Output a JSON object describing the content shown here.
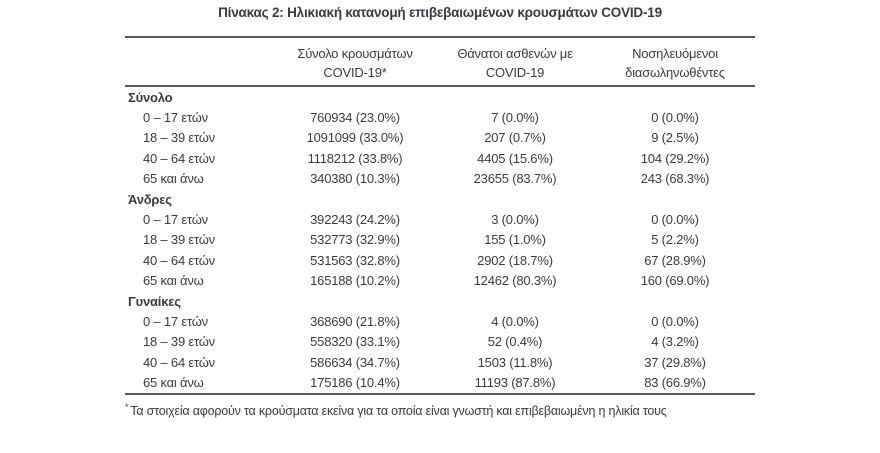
{
  "page": {
    "title": "Πίνακας 2: Ηλικιακή κατανομή επιβεβαιωμένων κρουσμάτων COVID-19",
    "footnote_marker": "*",
    "footnote": "Τα στοιχεία αφορούν τα κρούσματα εκείνα για τα οποία είναι γνωστή και επιβεβαιωμένη η ηλικία τους"
  },
  "colors": {
    "text": "#3a3b3f",
    "rule": "#58595b",
    "background": "#ffffff"
  },
  "table": {
    "columns": [
      {
        "line1": "Σύνολο κρουσμάτων",
        "line2": "COVID-19*"
      },
      {
        "line1": "Θάνατοι ασθενών με",
        "line2": "COVID-19"
      },
      {
        "line1": "Νοσηλευόμενοι",
        "line2": "διασωληνωθέντες"
      }
    ],
    "sections": [
      {
        "label": "Σύνολο",
        "rows": [
          {
            "label": "0 – 17 ετών",
            "values": [
              "760934 (23.0%)",
              "7 (0.0%)",
              "0 (0.0%)"
            ]
          },
          {
            "label": "18 – 39 ετών",
            "values": [
              "1091099 (33.0%)",
              "207 (0.7%)",
              "9 (2.5%)"
            ]
          },
          {
            "label": "40 – 64 ετών",
            "values": [
              "1118212 (33.8%)",
              "4405 (15.6%)",
              "104 (29.2%)"
            ]
          },
          {
            "label": "65 και άνω",
            "values": [
              "340380 (10.3%)",
              "23655 (83.7%)",
              "243 (68.3%)"
            ]
          }
        ]
      },
      {
        "label": "Άνδρες",
        "rows": [
          {
            "label": "0 – 17 ετών",
            "values": [
              "392243 (24.2%)",
              "3 (0.0%)",
              "0 (0.0%)"
            ]
          },
          {
            "label": "18 – 39 ετών",
            "values": [
              "532773 (32.9%)",
              "155 (1.0%)",
              "5 (2.2%)"
            ]
          },
          {
            "label": "40 – 64 ετών",
            "values": [
              "531563 (32.8%)",
              "2902 (18.7%)",
              "67 (28.9%)"
            ]
          },
          {
            "label": "65 και άνω",
            "values": [
              "165188 (10.2%)",
              "12462 (80.3%)",
              "160 (69.0%)"
            ]
          }
        ]
      },
      {
        "label": "Γυναίκες",
        "rows": [
          {
            "label": "0 – 17 ετών",
            "values": [
              "368690 (21.8%)",
              "4 (0.0%)",
              "0 (0.0%)"
            ]
          },
          {
            "label": "18 – 39 ετών",
            "values": [
              "558320 (33.1%)",
              "52 (0.4%)",
              "4 (3.2%)"
            ]
          },
          {
            "label": "40 – 64 ετών",
            "values": [
              "586634 (34.7%)",
              "1503 (11.8%)",
              "37 (29.8%)"
            ]
          },
          {
            "label": "65 και άνω",
            "values": [
              "175186 (10.4%)",
              "11193 (87.8%)",
              "83 (66.9%)"
            ]
          }
        ]
      }
    ]
  }
}
